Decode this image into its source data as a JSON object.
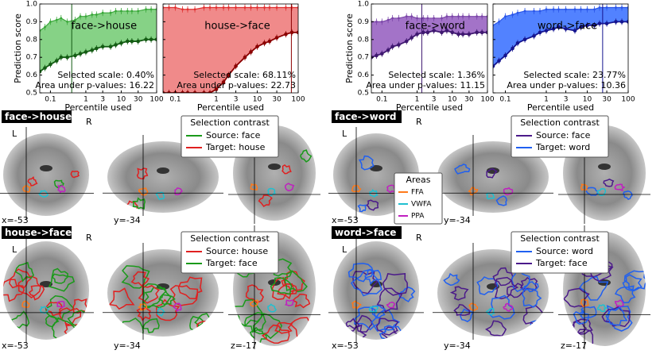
{
  "chart_data": [
    {
      "type": "line",
      "title": "face->house",
      "ylabel": "Prediction score",
      "xlabel": "Percentile used",
      "annotations": [
        "Selected scale: 0.40%",
        "Area under p-values: 16.22"
      ],
      "selected_x": 0.4,
      "xlog": true,
      "xlim": [
        0.05,
        100
      ],
      "xticks": [
        0.1,
        1,
        3,
        10,
        30,
        100
      ],
      "ylim": [
        0.5,
        1
      ],
      "yticks": [
        0.5,
        0.6,
        0.7,
        0.8,
        0.9,
        {
          "value": 1,
          "label": "1.0"
        }
      ],
      "fill": "#86d286",
      "x": [
        0.05,
        0.07,
        0.1,
        0.15,
        0.2,
        0.3,
        0.5,
        0.7,
        1,
        1.5,
        2,
        3,
        5,
        7,
        10,
        15,
        20,
        30,
        50,
        70,
        100
      ],
      "series": [
        {
          "color": "#3aa83a",
          "values": [
            0.85,
            0.87,
            0.9,
            0.91,
            0.92,
            0.9,
            0.91,
            0.93,
            0.93,
            0.94,
            0.94,
            0.95,
            0.95,
            0.96,
            0.96,
            0.96,
            0.96,
            0.96,
            0.97,
            0.97,
            0.97
          ]
        },
        {
          "color": "#145c14",
          "values": [
            0.62,
            0.64,
            0.66,
            0.68,
            0.7,
            0.7,
            0.71,
            0.72,
            0.73,
            0.74,
            0.75,
            0.76,
            0.76,
            0.77,
            0.78,
            0.79,
            0.79,
            0.79,
            0.8,
            0.8,
            0.8
          ]
        }
      ]
    },
    {
      "type": "line",
      "title": "house->face",
      "xlabel": "Percentile used",
      "annotations": [
        "Selected scale: 68.11%",
        "Area under p-values: 22.73"
      ],
      "selected_x": 68.11,
      "xlog": true,
      "xlim": [
        0.05,
        100
      ],
      "xticks": [
        0.1,
        1,
        3,
        10,
        30,
        100
      ],
      "ylim": [
        0.5,
        1
      ],
      "yticks": [
        0.5,
        0.6,
        0.7,
        0.8,
        0.9,
        {
          "value": 1,
          "label": "1.0"
        }
      ],
      "fill": "#f08a8a",
      "x": [
        0.05,
        0.07,
        0.1,
        0.15,
        0.2,
        0.3,
        0.5,
        0.7,
        1,
        1.5,
        2,
        3,
        5,
        7,
        10,
        15,
        20,
        30,
        50,
        70,
        100
      ],
      "series": [
        {
          "color": "#e03030",
          "values": [
            0.98,
            0.98,
            0.98,
            0.97,
            0.97,
            0.97,
            0.98,
            0.98,
            0.98,
            0.98,
            0.98,
            0.98,
            0.98,
            0.98,
            0.98,
            0.98,
            0.98,
            0.98,
            0.98,
            0.98,
            0.98
          ]
        },
        {
          "color": "#8b0000",
          "values": [
            0.5,
            0.5,
            0.5,
            0.5,
            0.5,
            0.5,
            0.5,
            0.5,
            0.52,
            0.56,
            0.6,
            0.65,
            0.7,
            0.73,
            0.76,
            0.78,
            0.79,
            0.81,
            0.83,
            0.84,
            0.84
          ]
        }
      ]
    },
    {
      "type": "line",
      "title": "face->word",
      "ylabel": "Prediction score",
      "xlabel": "Percentile used",
      "annotations": [
        "Selected scale: 1.36%",
        "Area under p-values: 11.15"
      ],
      "selected_x": 1.36,
      "xlog": true,
      "xlim": [
        0.05,
        100
      ],
      "xticks": [
        0.1,
        1,
        3,
        10,
        30,
        100
      ],
      "ylim": [
        0.5,
        1
      ],
      "yticks": [
        0.5,
        0.6,
        0.7,
        0.8,
        0.9,
        {
          "value": 1,
          "label": "1.0"
        }
      ],
      "fill": "#a373c8",
      "x": [
        0.05,
        0.07,
        0.1,
        0.15,
        0.2,
        0.3,
        0.5,
        0.7,
        1,
        1.5,
        2,
        3,
        5,
        7,
        10,
        15,
        20,
        30,
        50,
        70,
        100
      ],
      "series": [
        {
          "color": "#7a45a8",
          "values": [
            0.9,
            0.9,
            0.9,
            0.91,
            0.92,
            0.92,
            0.93,
            0.93,
            0.92,
            0.92,
            0.92,
            0.92,
            0.92,
            0.93,
            0.93,
            0.93,
            0.93,
            0.93,
            0.93,
            0.93,
            0.93
          ]
        },
        {
          "color": "#3f1870",
          "values": [
            0.7,
            0.71,
            0.72,
            0.74,
            0.76,
            0.77,
            0.79,
            0.81,
            0.83,
            0.84,
            0.84,
            0.85,
            0.84,
            0.85,
            0.84,
            0.83,
            0.83,
            0.83,
            0.84,
            0.84,
            0.84
          ]
        }
      ]
    },
    {
      "type": "line",
      "title": "word->face",
      "xlabel": "Percentile used",
      "annotations": [
        "Selected scale: 23.77%",
        "Area under p-values: 10.36"
      ],
      "selected_x": 23.77,
      "xlog": true,
      "xlim": [
        0.05,
        100
      ],
      "xticks": [
        0.1,
        1,
        3,
        10,
        30,
        100
      ],
      "ylim": [
        0.5,
        1
      ],
      "yticks": [
        0.5,
        0.6,
        0.7,
        0.8,
        0.9,
        {
          "value": 1,
          "label": "1.0"
        }
      ],
      "fill": "#5282ff",
      "x": [
        0.05,
        0.07,
        0.1,
        0.15,
        0.2,
        0.3,
        0.5,
        0.7,
        1,
        1.5,
        2,
        3,
        5,
        7,
        10,
        15,
        20,
        30,
        50,
        70,
        100
      ],
      "series": [
        {
          "color": "#2a55e8",
          "values": [
            0.88,
            0.9,
            0.93,
            0.94,
            0.95,
            0.96,
            0.96,
            0.96,
            0.97,
            0.97,
            0.97,
            0.97,
            0.97,
            0.97,
            0.97,
            0.97,
            0.98,
            0.98,
            0.98,
            0.98,
            0.98
          ]
        },
        {
          "color": "#151590",
          "values": [
            0.65,
            0.68,
            0.71,
            0.75,
            0.78,
            0.8,
            0.82,
            0.84,
            0.85,
            0.86,
            0.87,
            0.86,
            0.85,
            0.87,
            0.88,
            0.88,
            0.89,
            0.89,
            0.9,
            0.9,
            0.9
          ]
        }
      ]
    }
  ],
  "brain_panels": [
    {
      "label": "face->house",
      "lr": [
        "L",
        "R"
      ],
      "coords": [
        "x=-53",
        "y=-34"
      ],
      "legend_title": "Selection contrast",
      "source": "Source: face",
      "target": "Target: house",
      "source_color": "#1a9a1a",
      "target_color": "#e02020"
    },
    {
      "label": "face->word",
      "lr": [
        "L",
        "R"
      ],
      "coords": [
        "x=-53",
        "y=-34"
      ],
      "legend_title": "Selection contrast",
      "source": "Source: face",
      "target": "Target: word",
      "source_color": "#4b1a8a",
      "target_color": "#2060f0"
    },
    {
      "label": "house->face",
      "lr": [
        "L",
        "R"
      ],
      "coords": [
        "x=-53",
        "y=-34",
        "z=-17"
      ],
      "legend_title": "Selection contrast",
      "source": "Source: house",
      "target": "Target: face",
      "source_color": "#e02020",
      "target_color": "#1a9a1a"
    },
    {
      "label": "word->face",
      "lr": [
        "L",
        "R"
      ],
      "coords": [
        "x=-53",
        "y=-34",
        "z=-17"
      ],
      "legend_title": "Selection contrast",
      "source": "Source: word",
      "target": "Target: face",
      "source_color": "#2060f0",
      "target_color": "#4b1a8a"
    }
  ],
  "areas_legend": {
    "title": "Areas",
    "items": [
      "FFA",
      "VWFA",
      "PPA"
    ],
    "colors": [
      "#ff7a1a",
      "#20c0d0",
      "#c020c0"
    ]
  }
}
